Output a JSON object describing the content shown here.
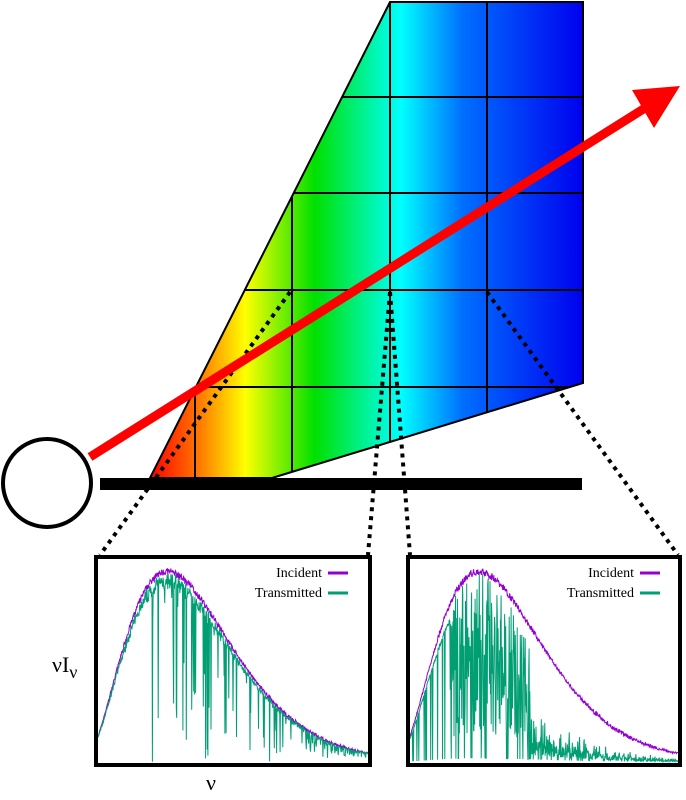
{
  "panels": [
    {
      "legend": [
        "Incident",
        "Transmitted"
      ]
    },
    {
      "legend": [
        "Incident",
        "Transmitted"
      ]
    }
  ],
  "axis_labels": {
    "y": "νI",
    "y_subscript": "ν",
    "x": "ν"
  }
}
